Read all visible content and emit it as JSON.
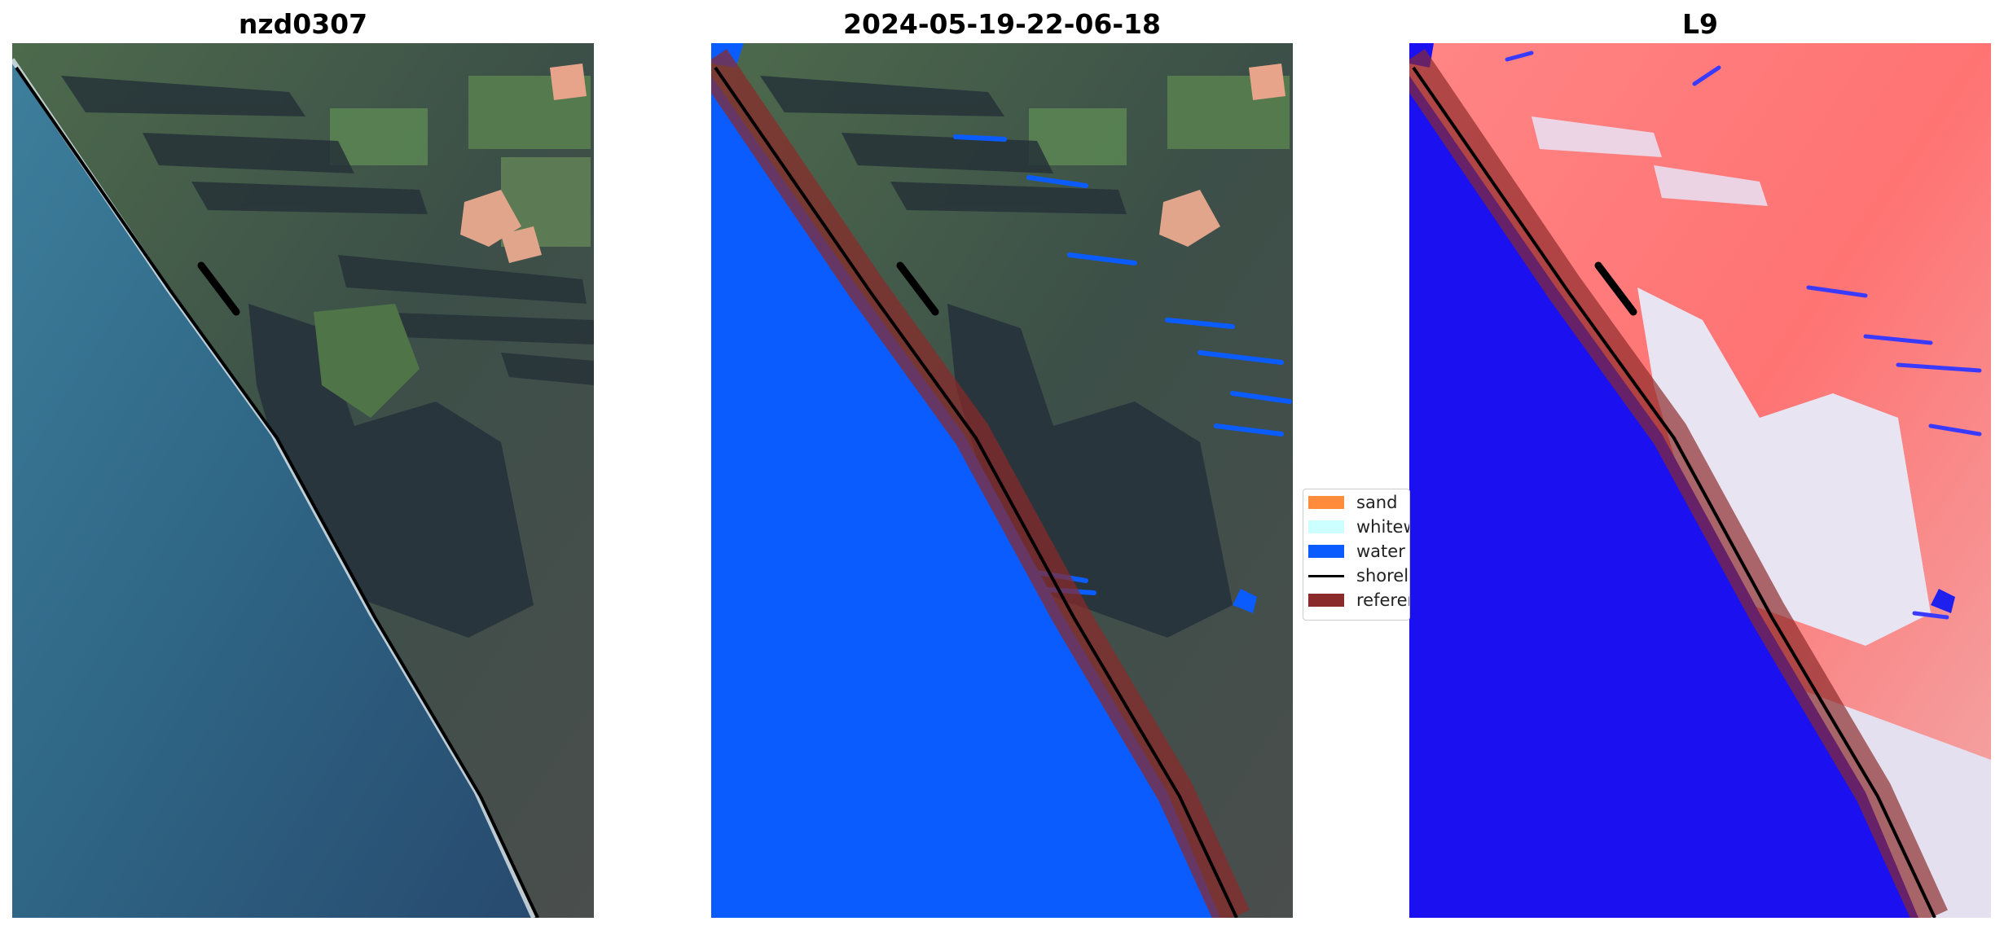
{
  "panels": [
    {
      "title": "nzd0307"
    },
    {
      "title": "2024-05-19-22-06-18"
    },
    {
      "title": "L9"
    }
  ],
  "legend": {
    "items": [
      {
        "label": "sand",
        "color": "#ff8c3a"
      },
      {
        "label": "whitewater",
        "color": "#ccffff"
      },
      {
        "label": "water",
        "color": "#0a5cff"
      },
      {
        "label": "shoreline",
        "color": "#000000"
      },
      {
        "label": "reference",
        "color": "#8b2a2a"
      }
    ]
  },
  "colors": {
    "ocean": "#2e6a8a",
    "land": "#3e5a48",
    "forest": "#2a3a3e",
    "water_class": "#0a5cff",
    "reference_band": "#8b2a2a",
    "index_water": "#1a10f0",
    "index_land": "#ff7a7a"
  }
}
